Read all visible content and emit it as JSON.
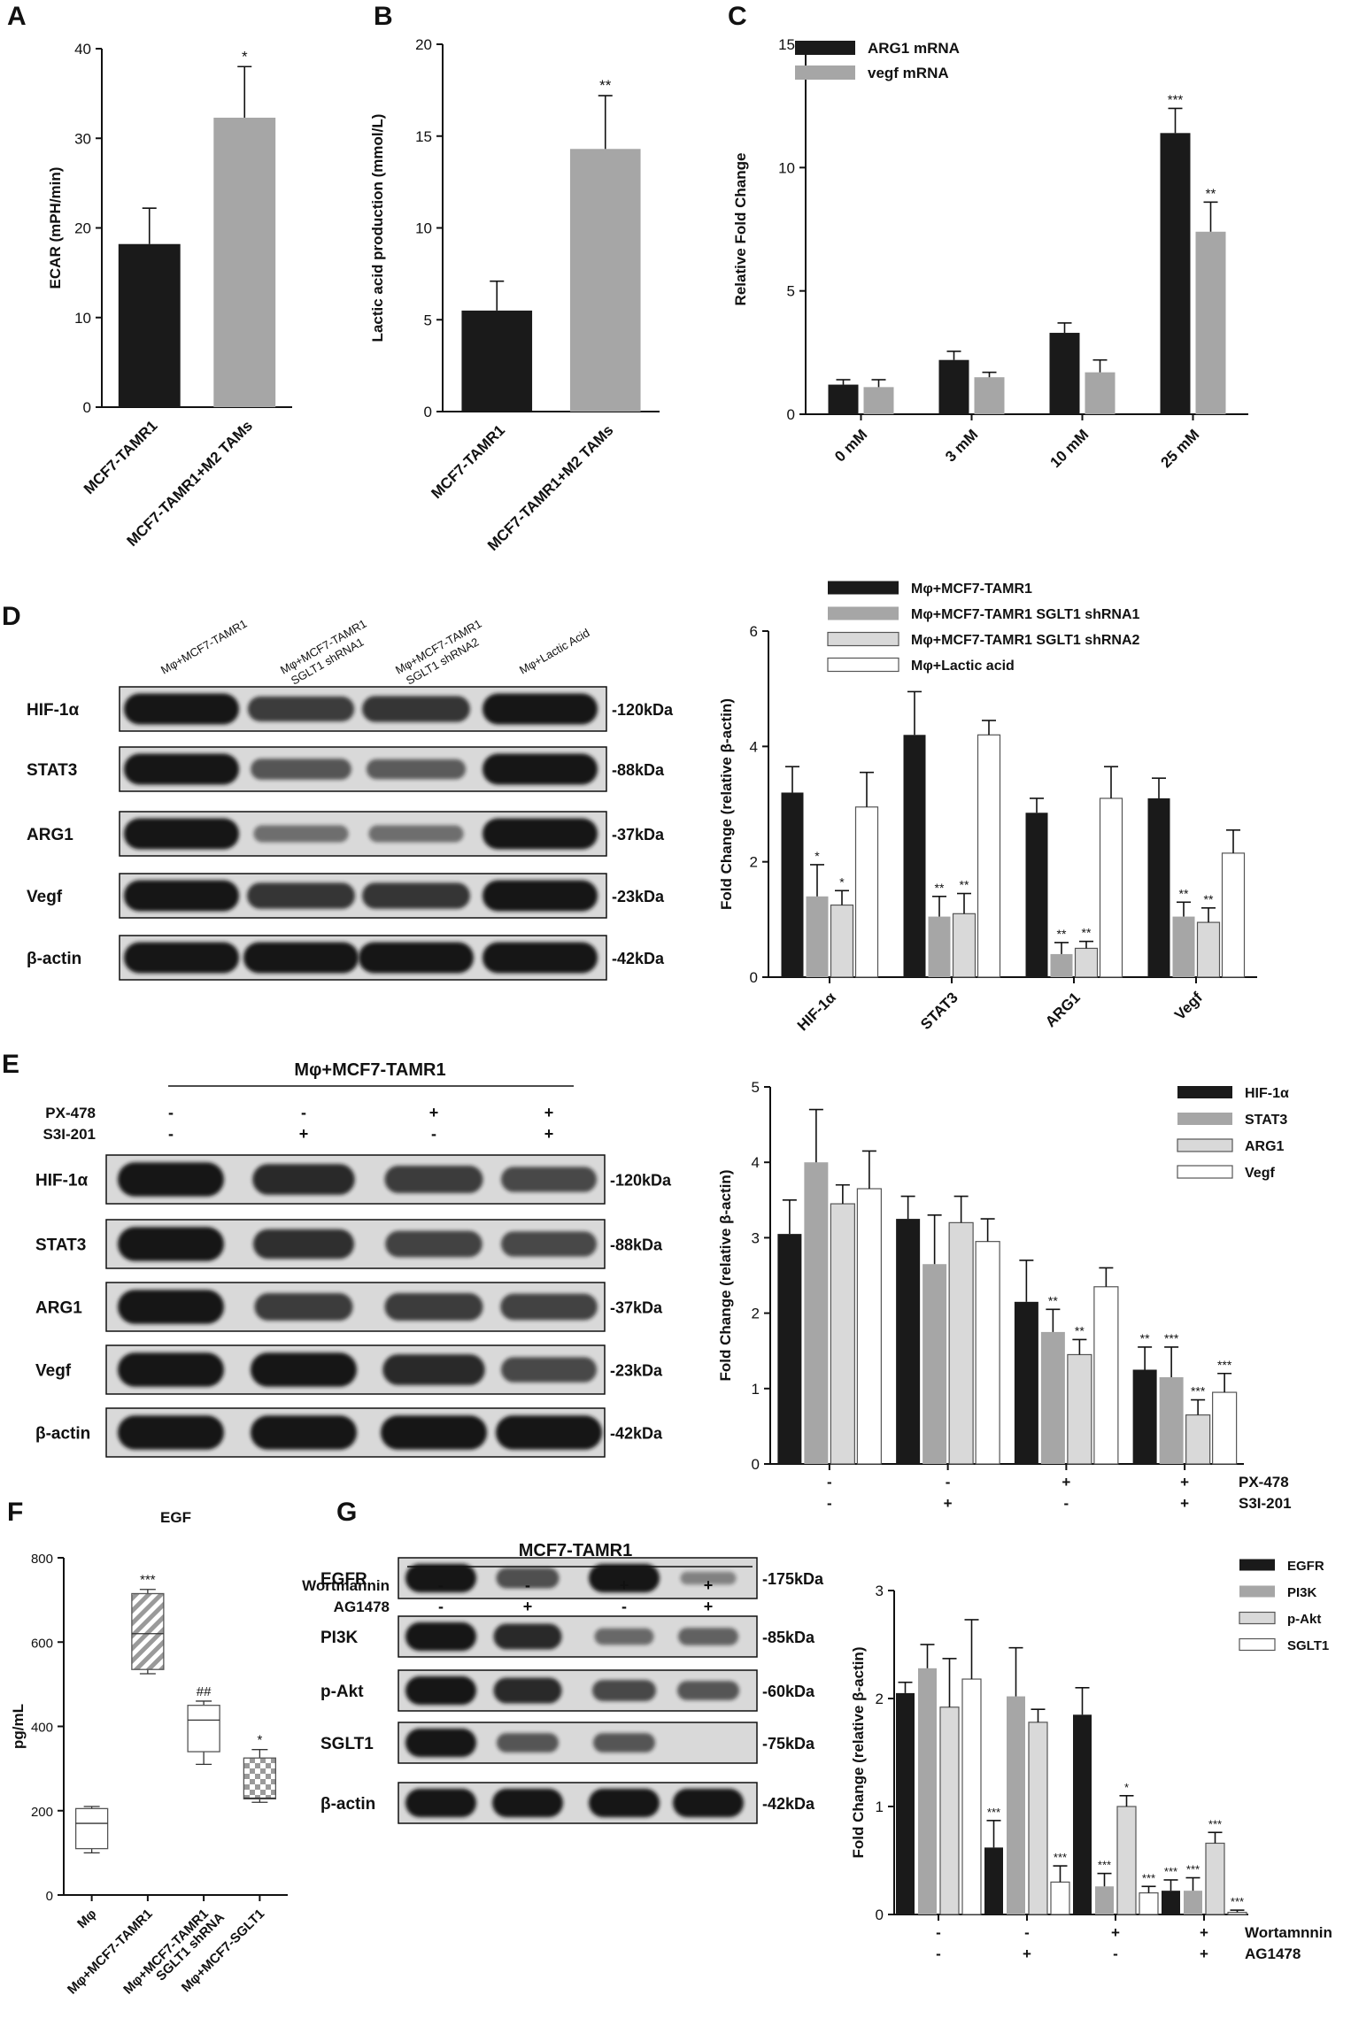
{
  "colors": {
    "black": "#1a1a1a",
    "gray": "#a6a6a6",
    "lightgray": "#d9d9d9",
    "white": "#ffffff",
    "blot_bg": "#d9d9d9",
    "band": "#141414"
  },
  "panels": {
    "A": "A",
    "B": "B",
    "C": "C",
    "D": "D",
    "E": "E",
    "F": "F",
    "G": "G"
  },
  "chart_data": [
    {
      "id": "A",
      "type": "bar",
      "ylabel": "ECAR (mPH/min)",
      "ylim": [
        0,
        40
      ],
      "yticks": [
        0,
        10,
        20,
        30,
        40
      ],
      "categories": [
        "MCF7-TAMR1",
        "MCF7-TAMR1+M2 TAMs"
      ],
      "values": [
        18.2,
        32.3
      ],
      "errors": [
        4.0,
        5.7
      ],
      "colors": [
        "#1a1a1a",
        "#a6a6a6"
      ],
      "stars": [
        "",
        "*"
      ]
    },
    {
      "id": "B",
      "type": "bar",
      "ylabel": "Lactic acid production (mmol/L)",
      "ylim": [
        0,
        20
      ],
      "yticks": [
        0,
        5,
        10,
        15,
        20
      ],
      "categories": [
        "MCF7-TAMR1",
        "MCF7-TAMR1+M2 TAMs"
      ],
      "values": [
        5.5,
        14.3
      ],
      "errors": [
        1.6,
        2.9
      ],
      "colors": [
        "#1a1a1a",
        "#a6a6a6"
      ],
      "stars": [
        "",
        "**"
      ]
    },
    {
      "id": "C",
      "type": "bar",
      "ylabel": "Relative Fold Change",
      "ylim": [
        0,
        15
      ],
      "yticks": [
        0,
        5,
        10,
        15
      ],
      "categories": [
        "0 mM",
        "3 mM",
        "10 mM",
        "25 mM"
      ],
      "series": [
        {
          "name": "ARG1 mRNA",
          "values": [
            1.2,
            2.2,
            3.3,
            11.4
          ],
          "errors": [
            0.2,
            0.35,
            0.4,
            1.0
          ],
          "color": "#1a1a1a",
          "stars": [
            "",
            "",
            "",
            "***"
          ]
        },
        {
          "name": "vegf mRNA",
          "values": [
            1.1,
            1.5,
            1.7,
            7.4
          ],
          "errors": [
            0.3,
            0.2,
            0.5,
            1.2
          ],
          "color": "#a6a6a6",
          "stars": [
            "",
            "",
            "",
            "**"
          ]
        }
      ]
    },
    {
      "id": "D",
      "type": "bar",
      "ylabel": "Fold Change (relative β-actin)",
      "ylim": [
        0,
        6
      ],
      "yticks": [
        0,
        2,
        4,
        6
      ],
      "categories": [
        "HIF-1α",
        "STAT3",
        "ARG1",
        "Vegf"
      ],
      "series": [
        {
          "name": "Mφ+MCF7-TAMR1",
          "values": [
            3.2,
            4.2,
            2.85,
            3.1
          ],
          "errors": [
            0.45,
            0.75,
            0.25,
            0.35
          ],
          "color": "#1a1a1a",
          "stars": [
            "",
            "",
            "",
            ""
          ]
        },
        {
          "name": "Mφ+MCF7-TAMR1 SGLT1 shRNA1",
          "values": [
            1.4,
            1.05,
            0.4,
            1.05
          ],
          "errors": [
            0.55,
            0.35,
            0.2,
            0.25
          ],
          "color": "#a6a6a6",
          "stars": [
            "*",
            "**",
            "**",
            "**"
          ]
        },
        {
          "name": "Mφ+MCF7-TAMR1 SGLT1 shRNA2",
          "values": [
            1.25,
            1.1,
            0.5,
            0.95
          ],
          "errors": [
            0.25,
            0.35,
            0.12,
            0.25
          ],
          "color": "#d9d9d9",
          "stars": [
            "*",
            "**",
            "**",
            "**"
          ]
        },
        {
          "name": "Mφ+Lactic acid",
          "values": [
            2.95,
            4.2,
            3.1,
            2.15
          ],
          "errors": [
            0.6,
            0.25,
            0.55,
            0.4
          ],
          "color": "#ffffff",
          "stars": [
            "",
            "",
            "",
            ""
          ]
        }
      ]
    },
    {
      "id": "E",
      "type": "bar",
      "ylabel": "Fold Change (relative β-actin)",
      "ylim": [
        0,
        5
      ],
      "yticks": [
        0,
        1,
        2,
        3,
        4,
        5
      ],
      "categories": [
        "",
        "",
        "",
        ""
      ],
      "conditions": [
        {
          "label": "PX-478",
          "values": [
            "-",
            "-",
            "+",
            "+"
          ]
        },
        {
          "label": "S3I-201",
          "values": [
            "-",
            "+",
            "-",
            "+"
          ]
        }
      ],
      "series": [
        {
          "name": "HIF-1α",
          "values": [
            3.05,
            3.25,
            2.15,
            1.25
          ],
          "errors": [
            0.45,
            0.3,
            0.55,
            0.3
          ],
          "color": "#1a1a1a",
          "stars": [
            "",
            "",
            "",
            "**"
          ]
        },
        {
          "name": "STAT3",
          "values": [
            4.0,
            2.65,
            1.75,
            1.15
          ],
          "errors": [
            0.7,
            0.65,
            0.3,
            0.4
          ],
          "color": "#a6a6a6",
          "stars": [
            "",
            "",
            "**",
            "***"
          ]
        },
        {
          "name": "ARG1",
          "values": [
            3.45,
            3.2,
            1.45,
            0.65
          ],
          "errors": [
            0.25,
            0.35,
            0.2,
            0.2
          ],
          "color": "#d9d9d9",
          "stars": [
            "",
            "",
            "**",
            "***"
          ]
        },
        {
          "name": "Vegf",
          "values": [
            3.65,
            2.95,
            2.35,
            0.95
          ],
          "errors": [
            0.5,
            0.3,
            0.25,
            0.25
          ],
          "color": "#ffffff",
          "stars": [
            "",
            "",
            "",
            "***"
          ]
        }
      ]
    },
    {
      "id": "F",
      "type": "box",
      "title": "EGF",
      "ylabel": "pg/mL",
      "ylim": [
        0,
        800
      ],
      "yticks": [
        0,
        200,
        400,
        600,
        800
      ],
      "categories": [
        "Mφ",
        "Mφ+MCF7-TAMR1",
        "Mφ+MCF7-TAMR1\nSGLT1 shRNA",
        "Mφ+MCF7-SGLT1"
      ],
      "boxes": [
        {
          "min": 100,
          "q1": 110,
          "median": 170,
          "q3": 205,
          "max": 210,
          "fill": "white",
          "stars": ""
        },
        {
          "min": 525,
          "q1": 535,
          "median": 620,
          "q3": 715,
          "max": 725,
          "fill": "hatch",
          "stars": "***"
        },
        {
          "min": 310,
          "q1": 340,
          "median": 415,
          "q3": 450,
          "max": 460,
          "fill": "white",
          "stars": "##"
        },
        {
          "min": 220,
          "q1": 228,
          "median": 230,
          "q3": 325,
          "max": 345,
          "fill": "checker",
          "stars": "*"
        }
      ]
    },
    {
      "id": "G",
      "type": "bar",
      "ylabel": "Fold Change (relative β-actin)",
      "ylim": [
        0,
        3
      ],
      "yticks": [
        0,
        1,
        2,
        3
      ],
      "categories": [
        "",
        "",
        "",
        ""
      ],
      "conditions": [
        {
          "label": "Wortamnnin",
          "values": [
            "-",
            "-",
            "+",
            "+"
          ]
        },
        {
          "label": "AG1478",
          "values": [
            "-",
            "+",
            "-",
            "+"
          ]
        }
      ],
      "series": [
        {
          "name": "EGFR",
          "values": [
            2.05,
            0.62,
            1.85,
            0.22
          ],
          "errors": [
            0.1,
            0.25,
            0.25,
            0.1
          ],
          "color": "#1a1a1a",
          "stars": [
            "",
            "***",
            "",
            "***"
          ]
        },
        {
          "name": "PI3K",
          "values": [
            2.28,
            2.02,
            0.26,
            0.22
          ],
          "errors": [
            0.22,
            0.45,
            0.12,
            0.12
          ],
          "color": "#a6a6a6",
          "stars": [
            "",
            "",
            "***",
            "***"
          ]
        },
        {
          "name": "p-Akt",
          "values": [
            1.92,
            1.78,
            1.0,
            0.66
          ],
          "errors": [
            0.45,
            0.12,
            0.1,
            0.1
          ],
          "color": "#d9d9d9",
          "stars": [
            "",
            "",
            "*",
            "***"
          ]
        },
        {
          "name": "SGLT1",
          "values": [
            2.18,
            0.3,
            0.2,
            0.02
          ],
          "errors": [
            0.55,
            0.15,
            0.06,
            0.02
          ],
          "color": "#ffffff",
          "stars": [
            "",
            "***",
            "***",
            "***"
          ]
        }
      ]
    }
  ],
  "blots": {
    "D": {
      "lanes": [
        "Mφ+MCF7-TAMR1",
        "Mφ+MCF7-TAMR1\nSGLT1 shRNA1",
        "Mφ+MCF7-TAMR1\nSGLT1 shRNA2",
        "Mφ+Lactic Acid"
      ],
      "rows": [
        {
          "label": "HIF-1α",
          "size": "-120kDa",
          "intensity": [
            1.0,
            0.7,
            0.75,
            1.0
          ]
        },
        {
          "label": "STAT3",
          "size": "-88kDa",
          "intensity": [
            1.0,
            0.5,
            0.45,
            1.0
          ]
        },
        {
          "label": "ARG1",
          "size": "-37kDa",
          "intensity": [
            1.0,
            0.3,
            0.3,
            1.0
          ]
        },
        {
          "label": "Vegf",
          "size": "-23kDa",
          "intensity": [
            1.0,
            0.75,
            0.75,
            1.0
          ]
        },
        {
          "label": "β-actin",
          "size": "-42kDa",
          "intensity": [
            1.0,
            1.0,
            1.0,
            1.0
          ]
        }
      ]
    },
    "E": {
      "header": "Mφ+MCF7-TAMR1",
      "conditions": [
        {
          "label": "PX-478",
          "values": [
            "-",
            "-",
            "+",
            "+"
          ]
        },
        {
          "label": "S3I-201",
          "values": [
            "-",
            "+",
            "-",
            "+"
          ]
        }
      ],
      "rows": [
        {
          "label": "HIF-1α",
          "size": "-120kDa",
          "intensity": [
            1.0,
            0.85,
            0.7,
            0.6
          ]
        },
        {
          "label": "STAT3",
          "size": "-88kDa",
          "intensity": [
            1.0,
            0.8,
            0.65,
            0.6
          ]
        },
        {
          "label": "ARG1",
          "size": "-37kDa",
          "intensity": [
            1.0,
            0.7,
            0.7,
            0.65
          ]
        },
        {
          "label": "Vegf",
          "size": "-23kDa",
          "intensity": [
            1.0,
            1.0,
            0.85,
            0.6
          ]
        },
        {
          "label": "β-actin",
          "size": "-42kDa",
          "intensity": [
            1.0,
            1.0,
            1.0,
            1.0
          ]
        }
      ]
    },
    "G": {
      "header": "MCF7-TAMR1",
      "conditions": [
        {
          "label": "Wortmannin",
          "values": [
            "-",
            "-",
            "+",
            "+"
          ]
        },
        {
          "label": "AG1478",
          "values": [
            "-",
            "+",
            "-",
            "+"
          ]
        }
      ],
      "rows": [
        {
          "label": "EGFR",
          "size": "-175kDa",
          "intensity": [
            1.0,
            0.55,
            1.0,
            0.15
          ]
        },
        {
          "label": "PI3K",
          "size": "-85kDa",
          "intensity": [
            1.0,
            0.85,
            0.35,
            0.4
          ]
        },
        {
          "label": "p-Akt",
          "size": "-60kDa",
          "intensity": [
            1.0,
            0.85,
            0.6,
            0.5
          ]
        },
        {
          "label": "SGLT1",
          "size": "-75kDa",
          "intensity": [
            1.0,
            0.5,
            0.5,
            0.0
          ]
        },
        {
          "label": "β-actin",
          "size": "-42kDa",
          "intensity": [
            1.0,
            1.0,
            1.0,
            1.0
          ]
        }
      ]
    }
  }
}
